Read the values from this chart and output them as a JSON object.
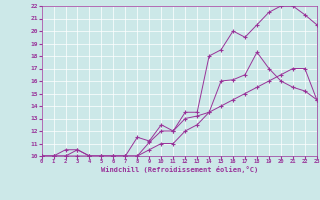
{
  "xlabel": "Windchill (Refroidissement éolien,°C)",
  "bg_color": "#cce8e8",
  "line_color": "#993399",
  "xmin": 0,
  "xmax": 23,
  "ymin": 10,
  "ymax": 22,
  "line1_x": [
    0,
    1,
    2,
    3,
    4,
    5,
    6,
    7,
    8,
    9,
    10,
    11,
    12,
    13,
    14,
    15,
    16,
    17,
    18,
    19,
    20,
    21,
    22,
    23
  ],
  "line1_y": [
    10,
    10,
    10.5,
    10.5,
    10,
    10,
    10,
    10,
    11.5,
    11.2,
    12.5,
    12,
    13.5,
    13.5,
    18,
    18.5,
    20,
    19.5,
    20.5,
    21.5,
    22,
    22,
    21.3,
    20.5
  ],
  "line2_x": [
    0,
    1,
    2,
    3,
    4,
    5,
    6,
    7,
    8,
    9,
    10,
    11,
    12,
    13,
    14,
    15,
    16,
    17,
    18,
    19,
    20,
    21,
    22,
    23
  ],
  "line2_y": [
    10,
    10,
    10,
    10.5,
    10,
    10,
    10,
    10,
    10,
    11.1,
    12,
    12,
    13,
    13.2,
    13.5,
    16,
    16.1,
    16.5,
    18.3,
    17,
    16,
    15.5,
    15.2,
    14.5
  ],
  "line3_x": [
    0,
    1,
    2,
    3,
    4,
    5,
    6,
    7,
    8,
    9,
    10,
    11,
    12,
    13,
    14,
    15,
    16,
    17,
    18,
    19,
    20,
    21,
    22,
    23
  ],
  "line3_y": [
    10,
    10,
    10,
    10,
    10,
    10,
    10,
    10,
    10,
    10.5,
    11,
    11,
    12,
    12.5,
    13.5,
    14,
    14.5,
    15,
    15.5,
    16,
    16.5,
    17,
    17,
    14.5
  ]
}
